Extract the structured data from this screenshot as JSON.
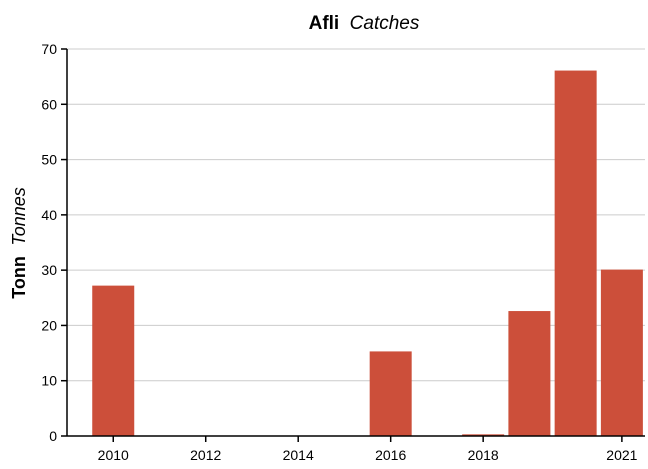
{
  "chart_data": {
    "type": "bar",
    "title": {
      "main": "Afli",
      "sub": "Catches"
    },
    "ylabel": {
      "main": "Tonn",
      "sub": "Tonnes"
    },
    "xlabel": "",
    "x_ticks": [
      "2010",
      "2012",
      "2014",
      "2016",
      "2018",
      "2021"
    ],
    "x_tick_years": [
      2010,
      2012,
      2014,
      2016,
      2018,
      2021
    ],
    "y_ticks": [
      "0",
      "10",
      "20",
      "30",
      "40",
      "50",
      "60",
      "70"
    ],
    "ylim": [
      0,
      70
    ],
    "xlim": [
      2009,
      2021.5
    ],
    "grid": true,
    "bar_color": "#cc4f3a",
    "grid_color": "#cccccc",
    "axis_color": "#000000",
    "series": [
      {
        "x": [
          2010,
          2011,
          2012,
          2013,
          2014,
          2015,
          2016,
          2017,
          2018,
          2019,
          2020,
          2021
        ],
        "values": [
          27.2,
          0,
          0,
          0,
          0,
          0,
          15.3,
          0,
          0.3,
          22.6,
          66.1,
          30.1
        ]
      }
    ]
  }
}
